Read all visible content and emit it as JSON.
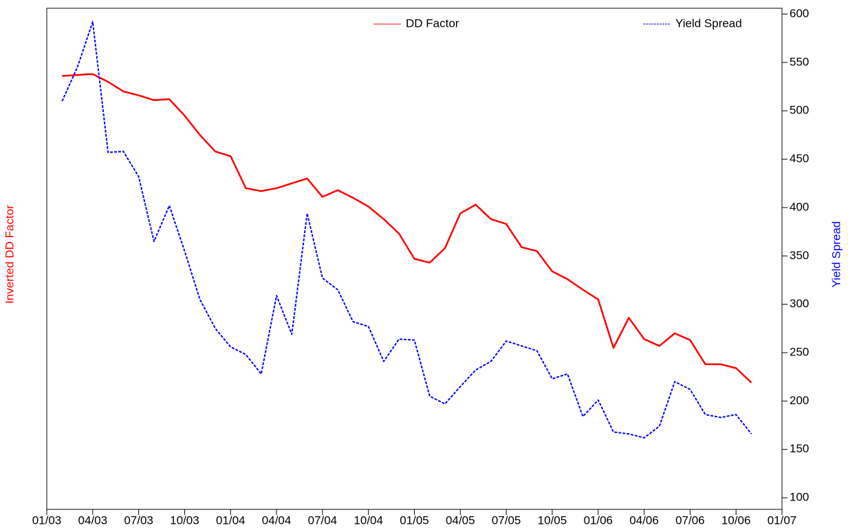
{
  "chart_data": {
    "type": "line",
    "ylabel": "Inverted DD Factor",
    "y2label": "Yield Spread",
    "x": [
      "02/03",
      "03/03",
      "04/03",
      "05/03",
      "06/03",
      "07/03",
      "08/03",
      "09/03",
      "10/03",
      "11/03",
      "12/03",
      "01/04",
      "02/04",
      "03/04",
      "04/04",
      "05/04",
      "06/04",
      "07/04",
      "08/04",
      "09/04",
      "10/04",
      "11/04",
      "12/04",
      "01/05",
      "02/05",
      "03/05",
      "04/05",
      "05/05",
      "06/05",
      "07/05",
      "08/05",
      "09/05",
      "10/05",
      "11/05",
      "12/05",
      "01/06",
      "02/06",
      "03/06",
      "04/06",
      "05/06",
      "06/06",
      "07/06",
      "08/06",
      "09/06",
      "10/06",
      "11/06"
    ],
    "xlim": [
      "01/03",
      "01/07"
    ],
    "xticks": [
      "01/03",
      "04/03",
      "07/03",
      "10/03",
      "01/04",
      "04/04",
      "07/04",
      "10/04",
      "01/05",
      "04/05",
      "07/05",
      "10/05",
      "01/06",
      "04/06",
      "07/06",
      "10/06",
      "01/07"
    ],
    "ylim": [
      88,
      606
    ],
    "y2lim": [
      88,
      606
    ],
    "y2ticks": [
      100,
      150,
      200,
      250,
      300,
      350,
      400,
      450,
      500,
      550,
      600
    ],
    "series": [
      {
        "name": "DD Factor",
        "color": "#ff0000",
        "axis": "y",
        "dashed": false,
        "values": [
          536,
          537,
          538,
          530,
          520,
          516,
          511,
          512,
          495,
          475,
          458,
          453,
          420,
          417,
          420,
          425,
          430,
          411,
          418,
          410,
          401,
          388,
          373,
          347,
          343,
          358,
          394,
          403,
          388,
          383,
          359,
          355,
          334,
          326,
          315,
          305,
          255,
          286,
          264,
          257,
          270,
          263,
          238,
          238,
          234,
          219
        ]
      },
      {
        "name": "Yield Spread",
        "color": "#0000ff",
        "axis": "y2",
        "dashed": true,
        "values": [
          510,
          545,
          592,
          457,
          458,
          432,
          365,
          402,
          355,
          305,
          275,
          256,
          248,
          228,
          309,
          269,
          394,
          327,
          315,
          282,
          277,
          241,
          264,
          263,
          205,
          197,
          215,
          232,
          241,
          262,
          257,
          252,
          223,
          228,
          184,
          201,
          168,
          166,
          162,
          174,
          220,
          212,
          186,
          183,
          186,
          166
        ]
      }
    ]
  }
}
